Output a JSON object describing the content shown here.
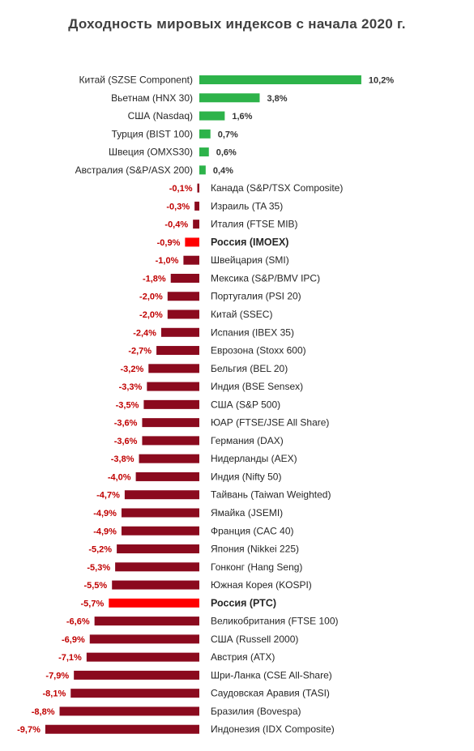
{
  "chart_data": {
    "type": "bar",
    "orientation": "horizontal",
    "title": "Доходность мировых индексов с начала 2020 г.",
    "xlabel": "",
    "ylabel": "",
    "grid": false,
    "legend": "none",
    "unit": "%",
    "xlim": [
      -9.7,
      10.2
    ],
    "colors": {
      "positive": "#2db34a",
      "negative": "#8b0a1e",
      "highlight": "#ff0000",
      "positive_label": "#333333",
      "negative_label": "#c00000"
    },
    "categories": [
      "Китай (SZSE Component)",
      "Вьетнам (HNX 30)",
      "США (Nasdaq)",
      "Турция (BIST 100)",
      "Швеция (OMXS30)",
      "Австралия (S&P/ASX 200)",
      "Канада (S&P/TSX Composite)",
      "Израиль (TA 35)",
      "Италия (FTSE MIB)",
      "Россия (IMOEX)",
      "Швейцария (SMI)",
      "Мексика (S&P/BMV IPC)",
      "Португалия (PSI 20)",
      "Китай (SSEC)",
      "Испания (IBEX 35)",
      "Еврозона (Stoxx 600)",
      "Бельгия (BEL 20)",
      "Индия (BSE Sensex)",
      "США (S&P 500)",
      "ЮАР (FTSE/JSE All Share)",
      "Германия (DAX)",
      "Нидерланды (AEX)",
      "Индия (Nifty 50)",
      "Тайвань (Taiwan Weighted)",
      "Ямайка (JSEMI)",
      "Франция (CAC 40)",
      "Япония (Nikkei 225)",
      "Гонконг (Hang Seng)",
      "Южная Корея (KOSPI)",
      "Россия (РТС)",
      "Великобритания (FTSE 100)",
      "США (Russell 2000)",
      "Австрия (ATX)",
      "Шри-Ланка (CSE All-Share)",
      "Саудовская Аравия (TASI)",
      "Бразилия (Bovespa)",
      "Индонезия (IDX Composite)"
    ],
    "values": [
      10.2,
      3.8,
      1.6,
      0.7,
      0.6,
      0.4,
      -0.1,
      -0.3,
      -0.4,
      -0.9,
      -1.0,
      -1.8,
      -2.0,
      -2.0,
      -2.4,
      -2.7,
      -3.2,
      -3.3,
      -3.5,
      -3.6,
      -3.6,
      -3.8,
      -4.0,
      -4.7,
      -4.9,
      -4.9,
      -5.2,
      -5.3,
      -5.5,
      -5.7,
      -6.6,
      -6.9,
      -7.1,
      -7.9,
      -8.1,
      -8.8,
      -9.7
    ],
    "labels": [
      "10,2%",
      "3,8%",
      "1,6%",
      "0,7%",
      "0,6%",
      "0,4%",
      "-0,1%",
      "-0,3%",
      "-0,4%",
      "-0,9%",
      "-1,0%",
      "-1,8%",
      "-2,0%",
      "-2,0%",
      "-2,4%",
      "-2,7%",
      "-3,2%",
      "-3,3%",
      "-3,5%",
      "-3,6%",
      "-3,6%",
      "-3,8%",
      "-4,0%",
      "-4,7%",
      "-4,9%",
      "-4,9%",
      "-5,2%",
      "-5,3%",
      "-5,5%",
      "-5,7%",
      "-6,6%",
      "-6,9%",
      "-7,1%",
      "-7,9%",
      "-8,1%",
      "-8,8%",
      "-9,7%"
    ],
    "highlighted": [
      "Россия (IMOEX)",
      "Россия (РТС)"
    ]
  }
}
